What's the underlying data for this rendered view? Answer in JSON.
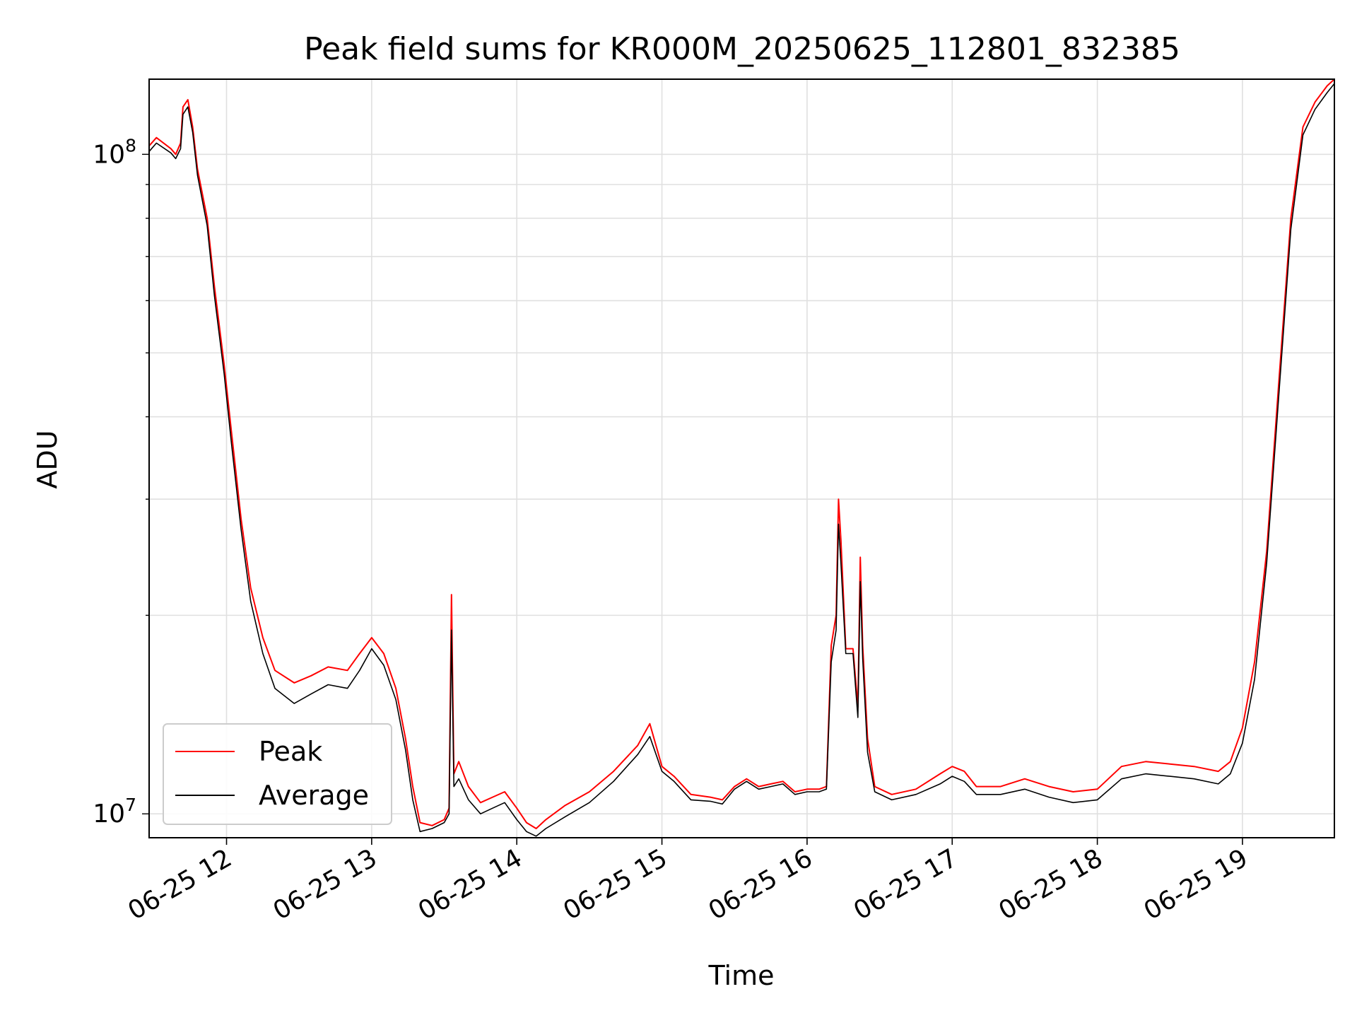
{
  "chart_data": {
    "type": "line",
    "title": "Peak field sums for KR000M_20250625_112801_832385",
    "xlabel": "Time",
    "ylabel": "ADU",
    "xlim": [
      "2025-06-25 11:28",
      "2025-06-25 19:38"
    ],
    "ylim": [
      9200000,
      130000000
    ],
    "yscale": "log",
    "grid": true,
    "legend": "lower-left",
    "x_ticks": [
      {
        "value": "2025-06-25 12:00",
        "label": "06-25 12"
      },
      {
        "value": "2025-06-25 13:00",
        "label": "06-25 13"
      },
      {
        "value": "2025-06-25 14:00",
        "label": "06-25 14"
      },
      {
        "value": "2025-06-25 15:00",
        "label": "06-25 15"
      },
      {
        "value": "2025-06-25 16:00",
        "label": "06-25 16"
      },
      {
        "value": "2025-06-25 17:00",
        "label": "06-25 17"
      },
      {
        "value": "2025-06-25 18:00",
        "label": "06-25 18"
      },
      {
        "value": "2025-06-25 19:00",
        "label": "06-25 19"
      }
    ],
    "y_ticks": [
      {
        "value": 10000000,
        "base": "10",
        "exp": "7"
      },
      {
        "value": 100000000,
        "base": "10",
        "exp": "8"
      }
    ],
    "series": [
      {
        "name": "Peak",
        "color": "#ff0000",
        "points": [
          [
            "2025-06-25 11:28",
            103000000
          ],
          [
            "2025-06-25 11:31",
            106000000
          ],
          [
            "2025-06-25 11:37",
            102000000
          ],
          [
            "2025-06-25 11:39",
            100000000
          ],
          [
            "2025-06-25 11:41",
            104000000
          ],
          [
            "2025-06-25 11:42",
            118000000
          ],
          [
            "2025-06-25 11:44",
            121000000
          ],
          [
            "2025-06-25 11:46",
            110000000
          ],
          [
            "2025-06-25 11:48",
            95000000
          ],
          [
            "2025-06-25 11:52",
            80000000
          ],
          [
            "2025-06-25 11:55",
            63000000
          ],
          [
            "2025-06-25 11:59",
            48000000
          ],
          [
            "2025-06-25 12:02",
            38000000
          ],
          [
            "2025-06-25 12:06",
            28000000
          ],
          [
            "2025-06-25 12:10",
            22000000
          ],
          [
            "2025-06-25 12:15",
            18500000
          ],
          [
            "2025-06-25 12:20",
            16500000
          ],
          [
            "2025-06-25 12:28",
            15800000
          ],
          [
            "2025-06-25 12:35",
            16200000
          ],
          [
            "2025-06-25 12:42",
            16700000
          ],
          [
            "2025-06-25 12:50",
            16500000
          ],
          [
            "2025-06-25 12:55",
            17500000
          ],
          [
            "2025-06-25 13:00",
            18500000
          ],
          [
            "2025-06-25 13:05",
            17500000
          ],
          [
            "2025-06-25 13:10",
            15500000
          ],
          [
            "2025-06-25 13:14",
            13000000
          ],
          [
            "2025-06-25 13:17",
            11000000
          ],
          [
            "2025-06-25 13:20",
            9700000
          ],
          [
            "2025-06-25 13:25",
            9600000
          ],
          [
            "2025-06-25 13:30",
            9800000
          ],
          [
            "2025-06-25 13:32",
            10200000
          ],
          [
            "2025-06-25 13:33",
            21500000
          ],
          [
            "2025-06-25 13:34",
            11500000
          ],
          [
            "2025-06-25 13:36",
            12000000
          ],
          [
            "2025-06-25 13:40",
            11000000
          ],
          [
            "2025-06-25 13:45",
            10400000
          ],
          [
            "2025-06-25 13:50",
            10600000
          ],
          [
            "2025-06-25 13:55",
            10800000
          ],
          [
            "2025-06-25 14:00",
            10200000
          ],
          [
            "2025-06-25 14:04",
            9700000
          ],
          [
            "2025-06-25 14:08",
            9500000
          ],
          [
            "2025-06-25 14:12",
            9800000
          ],
          [
            "2025-06-25 14:20",
            10300000
          ],
          [
            "2025-06-25 14:30",
            10800000
          ],
          [
            "2025-06-25 14:40",
            11600000
          ],
          [
            "2025-06-25 14:50",
            12700000
          ],
          [
            "2025-06-25 14:55",
            13700000
          ],
          [
            "2025-06-25 15:00",
            11800000
          ],
          [
            "2025-06-25 15:05",
            11400000
          ],
          [
            "2025-06-25 15:12",
            10700000
          ],
          [
            "2025-06-25 15:20",
            10600000
          ],
          [
            "2025-06-25 15:25",
            10500000
          ],
          [
            "2025-06-25 15:30",
            11000000
          ],
          [
            "2025-06-25 15:35",
            11300000
          ],
          [
            "2025-06-25 15:40",
            11000000
          ],
          [
            "2025-06-25 15:45",
            11100000
          ],
          [
            "2025-06-25 15:50",
            11200000
          ],
          [
            "2025-06-25 15:55",
            10800000
          ],
          [
            "2025-06-25 16:00",
            10900000
          ],
          [
            "2025-06-25 16:05",
            10900000
          ],
          [
            "2025-06-25 16:08",
            11000000
          ],
          [
            "2025-06-25 16:10",
            18000000
          ],
          [
            "2025-06-25 16:12",
            20000000
          ],
          [
            "2025-06-25 16:13",
            30000000
          ],
          [
            "2025-06-25 16:14",
            26000000
          ],
          [
            "2025-06-25 16:16",
            17800000
          ],
          [
            "2025-06-25 16:19",
            17800000
          ],
          [
            "2025-06-25 16:21",
            14500000
          ],
          [
            "2025-06-25 16:22",
            24500000
          ],
          [
            "2025-06-25 16:23",
            18000000
          ],
          [
            "2025-06-25 16:25",
            13000000
          ],
          [
            "2025-06-25 16:28",
            11000000
          ],
          [
            "2025-06-25 16:35",
            10700000
          ],
          [
            "2025-06-25 16:45",
            10900000
          ],
          [
            "2025-06-25 16:55",
            11500000
          ],
          [
            "2025-06-25 17:00",
            11800000
          ],
          [
            "2025-06-25 17:05",
            11600000
          ],
          [
            "2025-06-25 17:10",
            11000000
          ],
          [
            "2025-06-25 17:20",
            11000000
          ],
          [
            "2025-06-25 17:30",
            11300000
          ],
          [
            "2025-06-25 17:40",
            11000000
          ],
          [
            "2025-06-25 17:50",
            10800000
          ],
          [
            "2025-06-25 18:00",
            10900000
          ],
          [
            "2025-06-25 18:10",
            11800000
          ],
          [
            "2025-06-25 18:20",
            12000000
          ],
          [
            "2025-06-25 18:30",
            11900000
          ],
          [
            "2025-06-25 18:40",
            11800000
          ],
          [
            "2025-06-25 18:50",
            11600000
          ],
          [
            "2025-06-25 18:55",
            12000000
          ],
          [
            "2025-06-25 19:00",
            13500000
          ],
          [
            "2025-06-25 19:05",
            17000000
          ],
          [
            "2025-06-25 19:10",
            25000000
          ],
          [
            "2025-06-25 19:15",
            45000000
          ],
          [
            "2025-06-25 19:20",
            80000000
          ],
          [
            "2025-06-25 19:25",
            110000000
          ],
          [
            "2025-06-25 19:30",
            120000000
          ],
          [
            "2025-06-25 19:35",
            127000000
          ],
          [
            "2025-06-25 19:38",
            130000000
          ]
        ]
      },
      {
        "name": "Average",
        "color": "#000000",
        "points": [
          [
            "2025-06-25 11:28",
            101000000
          ],
          [
            "2025-06-25 11:31",
            104000000
          ],
          [
            "2025-06-25 11:37",
            100500000
          ],
          [
            "2025-06-25 11:39",
            98500000
          ],
          [
            "2025-06-25 11:41",
            102000000
          ],
          [
            "2025-06-25 11:42",
            115000000
          ],
          [
            "2025-06-25 11:44",
            118000000
          ],
          [
            "2025-06-25 11:46",
            108000000
          ],
          [
            "2025-06-25 11:48",
            93000000
          ],
          [
            "2025-06-25 11:52",
            78000000
          ],
          [
            "2025-06-25 11:55",
            61000000
          ],
          [
            "2025-06-25 11:59",
            46500000
          ],
          [
            "2025-06-25 12:02",
            36500000
          ],
          [
            "2025-06-25 12:06",
            27000000
          ],
          [
            "2025-06-25 12:10",
            21000000
          ],
          [
            "2025-06-25 12:15",
            17500000
          ],
          [
            "2025-06-25 12:20",
            15500000
          ],
          [
            "2025-06-25 12:28",
            14700000
          ],
          [
            "2025-06-25 12:35",
            15200000
          ],
          [
            "2025-06-25 12:42",
            15700000
          ],
          [
            "2025-06-25 12:50",
            15500000
          ],
          [
            "2025-06-25 12:55",
            16500000
          ],
          [
            "2025-06-25 13:00",
            17800000
          ],
          [
            "2025-06-25 13:05",
            16800000
          ],
          [
            "2025-06-25 13:10",
            14900000
          ],
          [
            "2025-06-25 13:14",
            12500000
          ],
          [
            "2025-06-25 13:17",
            10500000
          ],
          [
            "2025-06-25 13:20",
            9400000
          ],
          [
            "2025-06-25 13:25",
            9500000
          ],
          [
            "2025-06-25 13:30",
            9700000
          ],
          [
            "2025-06-25 13:32",
            10000000
          ],
          [
            "2025-06-25 13:33",
            19000000
          ],
          [
            "2025-06-25 13:34",
            11000000
          ],
          [
            "2025-06-25 13:36",
            11300000
          ],
          [
            "2025-06-25 13:40",
            10500000
          ],
          [
            "2025-06-25 13:45",
            10000000
          ],
          [
            "2025-06-25 13:50",
            10200000
          ],
          [
            "2025-06-25 13:55",
            10400000
          ],
          [
            "2025-06-25 14:00",
            9800000
          ],
          [
            "2025-06-25 14:04",
            9400000
          ],
          [
            "2025-06-25 14:08",
            9250000
          ],
          [
            "2025-06-25 14:12",
            9500000
          ],
          [
            "2025-06-25 14:20",
            9900000
          ],
          [
            "2025-06-25 14:30",
            10400000
          ],
          [
            "2025-06-25 14:40",
            11200000
          ],
          [
            "2025-06-25 14:50",
            12300000
          ],
          [
            "2025-06-25 14:55",
            13100000
          ],
          [
            "2025-06-25 15:00",
            11600000
          ],
          [
            "2025-06-25 15:05",
            11200000
          ],
          [
            "2025-06-25 15:12",
            10500000
          ],
          [
            "2025-06-25 15:20",
            10450000
          ],
          [
            "2025-06-25 15:25",
            10350000
          ],
          [
            "2025-06-25 15:30",
            10900000
          ],
          [
            "2025-06-25 15:35",
            11200000
          ],
          [
            "2025-06-25 15:40",
            10900000
          ],
          [
            "2025-06-25 15:45",
            11000000
          ],
          [
            "2025-06-25 15:50",
            11100000
          ],
          [
            "2025-06-25 15:55",
            10700000
          ],
          [
            "2025-06-25 16:00",
            10800000
          ],
          [
            "2025-06-25 16:05",
            10800000
          ],
          [
            "2025-06-25 16:08",
            10900000
          ],
          [
            "2025-06-25 16:10",
            17000000
          ],
          [
            "2025-06-25 16:12",
            19000000
          ],
          [
            "2025-06-25 16:13",
            27500000
          ],
          [
            "2025-06-25 16:14",
            24000000
          ],
          [
            "2025-06-25 16:16",
            17500000
          ],
          [
            "2025-06-25 16:19",
            17500000
          ],
          [
            "2025-06-25 16:21",
            14000000
          ],
          [
            "2025-06-25 16:22",
            22500000
          ],
          [
            "2025-06-25 16:23",
            17200000
          ],
          [
            "2025-06-25 16:25",
            12400000
          ],
          [
            "2025-06-25 16:28",
            10800000
          ],
          [
            "2025-06-25 16:35",
            10500000
          ],
          [
            "2025-06-25 16:45",
            10700000
          ],
          [
            "2025-06-25 16:55",
            11100000
          ],
          [
            "2025-06-25 17:00",
            11400000
          ],
          [
            "2025-06-25 17:05",
            11200000
          ],
          [
            "2025-06-25 17:10",
            10700000
          ],
          [
            "2025-06-25 17:20",
            10700000
          ],
          [
            "2025-06-25 17:30",
            10900000
          ],
          [
            "2025-06-25 17:40",
            10600000
          ],
          [
            "2025-06-25 17:50",
            10400000
          ],
          [
            "2025-06-25 18:00",
            10500000
          ],
          [
            "2025-06-25 18:10",
            11300000
          ],
          [
            "2025-06-25 18:20",
            11500000
          ],
          [
            "2025-06-25 18:30",
            11400000
          ],
          [
            "2025-06-25 18:40",
            11300000
          ],
          [
            "2025-06-25 18:50",
            11100000
          ],
          [
            "2025-06-25 18:55",
            11500000
          ],
          [
            "2025-06-25 19:00",
            12800000
          ],
          [
            "2025-06-25 19:05",
            16000000
          ],
          [
            "2025-06-25 19:10",
            24000000
          ],
          [
            "2025-06-25 19:15",
            43000000
          ],
          [
            "2025-06-25 19:20",
            77000000
          ],
          [
            "2025-06-25 19:25",
            107000000
          ],
          [
            "2025-06-25 19:30",
            117000000
          ],
          [
            "2025-06-25 19:35",
            124000000
          ],
          [
            "2025-06-25 19:38",
            128000000
          ]
        ]
      }
    ]
  }
}
